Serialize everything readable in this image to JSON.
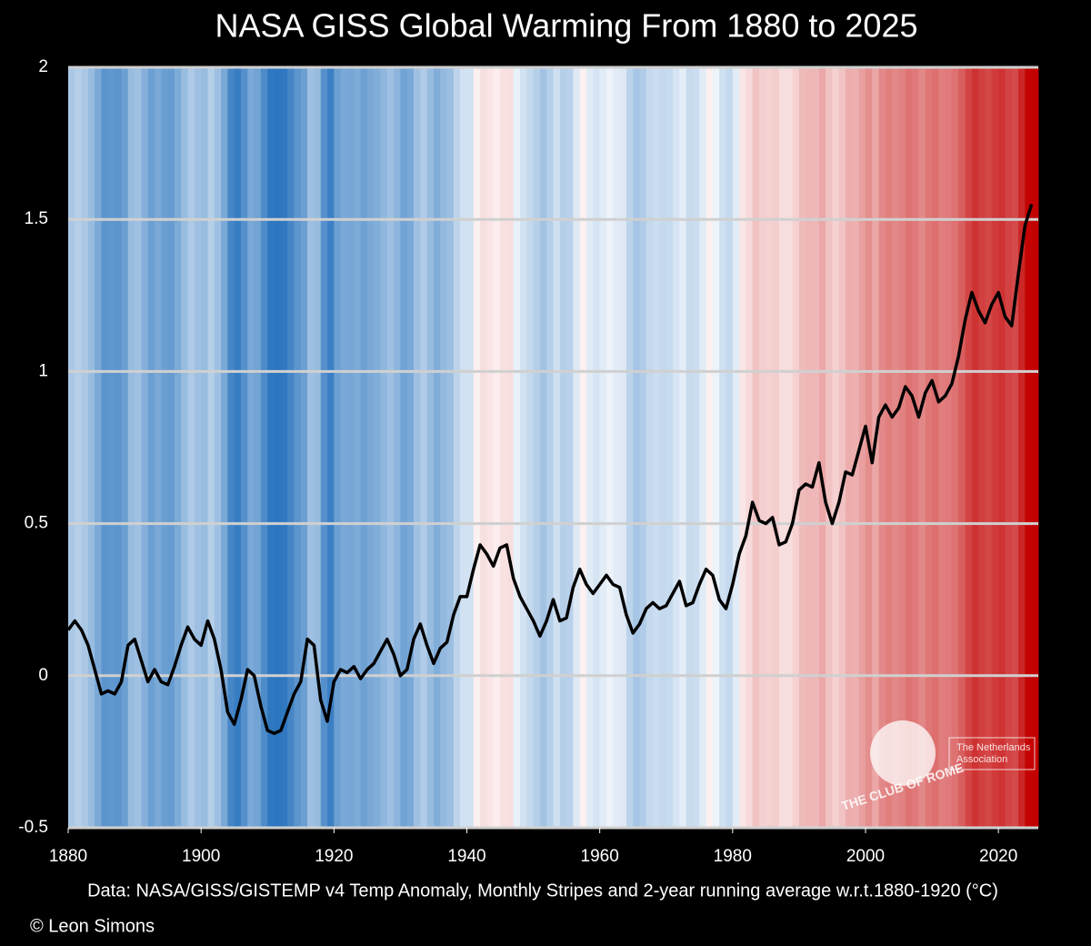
{
  "chart_data": {
    "type": "line",
    "title": "NASA GISS Global Warming From 1880 to 2025",
    "x_label": "Data: NASA/GISS/GISTEMP v4 Temp Anomaly, Monthly Stripes and 2-year running average w.r.t.1880-1920 (°C)",
    "x": [
      1880,
      1881,
      1882,
      1883,
      1884,
      1885,
      1886,
      1887,
      1888,
      1889,
      1890,
      1891,
      1892,
      1893,
      1894,
      1895,
      1896,
      1897,
      1898,
      1899,
      1900,
      1901,
      1902,
      1903,
      1904,
      1905,
      1906,
      1907,
      1908,
      1909,
      1910,
      1911,
      1912,
      1913,
      1914,
      1915,
      1916,
      1917,
      1918,
      1919,
      1920,
      1921,
      1922,
      1923,
      1924,
      1925,
      1926,
      1927,
      1928,
      1929,
      1930,
      1931,
      1932,
      1933,
      1934,
      1935,
      1936,
      1937,
      1938,
      1939,
      1940,
      1941,
      1942,
      1943,
      1944,
      1945,
      1946,
      1947,
      1948,
      1949,
      1950,
      1951,
      1952,
      1953,
      1954,
      1955,
      1956,
      1957,
      1958,
      1959,
      1960,
      1961,
      1962,
      1963,
      1964,
      1965,
      1966,
      1967,
      1968,
      1969,
      1970,
      1971,
      1972,
      1973,
      1974,
      1975,
      1976,
      1977,
      1978,
      1979,
      1980,
      1981,
      1982,
      1983,
      1984,
      1985,
      1986,
      1987,
      1988,
      1989,
      1990,
      1991,
      1992,
      1993,
      1994,
      1995,
      1996,
      1997,
      1998,
      1999,
      2000,
      2001,
      2002,
      2003,
      2004,
      2005,
      2006,
      2007,
      2008,
      2009,
      2010,
      2011,
      2012,
      2013,
      2014,
      2015,
      2016,
      2017,
      2018,
      2019,
      2020,
      2021,
      2022,
      2023,
      2024,
      2025
    ],
    "series": [
      {
        "color": "#000000",
        "values": [
          0.15,
          0.18,
          0.15,
          0.1,
          0.02,
          -0.06,
          -0.05,
          -0.06,
          -0.02,
          0.1,
          0.12,
          0.05,
          -0.02,
          0.02,
          -0.02,
          -0.03,
          0.03,
          0.1,
          0.16,
          0.12,
          0.1,
          0.18,
          0.12,
          0.02,
          -0.12,
          -0.16,
          -0.08,
          0.02,
          0.0,
          -0.1,
          -0.18,
          -0.19,
          -0.18,
          -0.12,
          -0.06,
          -0.02,
          0.12,
          0.1,
          -0.08,
          -0.15,
          -0.02,
          0.02,
          0.01,
          0.03,
          -0.01,
          0.02,
          0.04,
          0.08,
          0.12,
          0.07,
          0.0,
          0.02,
          0.12,
          0.17,
          0.1,
          0.04,
          0.09,
          0.11,
          0.2,
          0.26,
          0.26,
          0.35,
          0.43,
          0.4,
          0.36,
          0.42,
          0.43,
          0.32,
          0.26,
          0.22,
          0.18,
          0.13,
          0.18,
          0.25,
          0.18,
          0.19,
          0.29,
          0.35,
          0.3,
          0.27,
          0.3,
          0.33,
          0.3,
          0.29,
          0.2,
          0.14,
          0.17,
          0.22,
          0.24,
          0.22,
          0.23,
          0.27,
          0.31,
          0.23,
          0.24,
          0.3,
          0.35,
          0.33,
          0.25,
          0.22,
          0.3,
          0.4,
          0.46,
          0.57,
          0.51,
          0.5,
          0.52,
          0.43,
          0.44,
          0.5,
          0.61,
          0.63,
          0.62,
          0.7,
          0.57,
          0.5,
          0.57,
          0.67,
          0.66,
          0.74,
          0.82,
          0.7,
          0.85,
          0.89,
          0.85,
          0.88,
          0.95,
          0.92,
          0.85,
          0.93,
          0.97,
          0.9,
          0.92,
          0.96,
          1.05,
          1.17,
          1.26,
          1.2,
          1.16,
          1.22,
          1.26,
          1.18,
          1.15,
          1.32,
          1.48,
          1.55
        ]
      }
    ],
    "xlim": [
      1880,
      2026
    ],
    "xticks": [
      1880,
      1900,
      1920,
      1940,
      1960,
      1980,
      2000,
      2020
    ],
    "ylim": [
      -0.5,
      2
    ],
    "yticks": [
      2,
      1.5,
      1,
      0.5,
      0,
      -0.5
    ],
    "grid": true,
    "stripes": true
  },
  "credit": "© Leon Simons",
  "logo": {
    "name": "THE CLUB OF ROME",
    "lines": [
      "The Netherlands",
      "Association"
    ]
  }
}
